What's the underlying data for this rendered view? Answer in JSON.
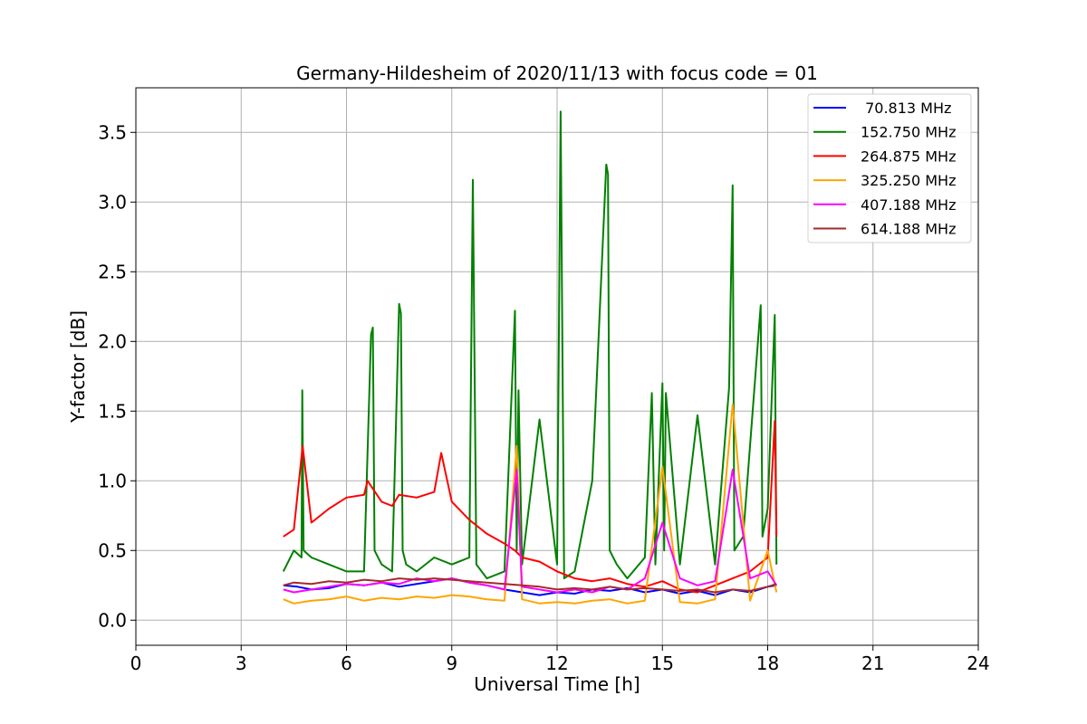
{
  "chart_data": {
    "type": "line",
    "title": "Germany-Hildesheim of 2020/11/13 with focus code = 01",
    "xlabel": "Universal Time [h]",
    "ylabel": "Y-factor [dB]",
    "xlim": [
      0,
      24
    ],
    "ylim": [
      -0.18,
      3.82
    ],
    "xticks": [
      0,
      3,
      6,
      9,
      12,
      15,
      18,
      21,
      24
    ],
    "yticks": [
      0.0,
      0.5,
      1.0,
      1.5,
      2.0,
      2.5,
      3.0,
      3.5
    ],
    "xtick_labels": [
      "0",
      "3",
      "6",
      "9",
      "12",
      "15",
      "18",
      "21",
      "24"
    ],
    "ytick_labels": [
      "0.0",
      "0.5",
      "1.0",
      "1.5",
      "2.0",
      "2.5",
      "3.0",
      "3.5"
    ],
    "grid": true,
    "legend_position": "top-right",
    "series": [
      {
        "name": " 70.813 MHz",
        "color": "#0000ff",
        "x": [
          4.2,
          4.6,
          5.0,
          5.5,
          6.0,
          6.5,
          7.0,
          7.5,
          8.0,
          8.5,
          9.0,
          9.5,
          10.0,
          10.5,
          11.0,
          11.5,
          12.0,
          12.5,
          13.0,
          13.5,
          14.0,
          14.5,
          15.0,
          15.5,
          16.0,
          16.5,
          17.0,
          17.5,
          18.0,
          18.25
        ],
        "values": [
          0.25,
          0.24,
          0.22,
          0.23,
          0.26,
          0.25,
          0.27,
          0.24,
          0.26,
          0.28,
          0.3,
          0.27,
          0.25,
          0.22,
          0.2,
          0.18,
          0.2,
          0.19,
          0.22,
          0.21,
          0.23,
          0.2,
          0.22,
          0.19,
          0.21,
          0.18,
          0.22,
          0.2,
          0.24,
          0.25
        ]
      },
      {
        "name": "152.750 MHz",
        "color": "#008000",
        "x": [
          4.2,
          4.5,
          4.72,
          4.74,
          4.78,
          5.0,
          5.5,
          6.0,
          6.5,
          6.7,
          6.75,
          6.8,
          7.0,
          7.3,
          7.5,
          7.55,
          7.6,
          7.7,
          8.0,
          8.5,
          9.0,
          9.5,
          9.6,
          9.7,
          10.0,
          10.5,
          10.8,
          10.85,
          10.9,
          11.0,
          11.5,
          12.0,
          12.1,
          12.2,
          12.5,
          13.0,
          13.4,
          13.45,
          13.5,
          13.7,
          14.0,
          14.5,
          14.7,
          14.8,
          15.0,
          15.05,
          15.1,
          15.5,
          16.0,
          16.5,
          16.9,
          17.0,
          17.05,
          17.3,
          17.8,
          17.85,
          18.0,
          18.2,
          18.25
        ],
        "values": [
          0.35,
          0.5,
          0.45,
          1.65,
          0.5,
          0.45,
          0.4,
          0.35,
          0.35,
          2.05,
          2.1,
          0.5,
          0.4,
          0.35,
          2.27,
          2.2,
          0.5,
          0.4,
          0.35,
          0.45,
          0.4,
          0.45,
          3.16,
          0.4,
          0.3,
          0.35,
          2.22,
          0.5,
          1.65,
          0.4,
          1.44,
          0.4,
          3.65,
          0.3,
          0.35,
          1.0,
          3.27,
          3.2,
          0.5,
          0.4,
          0.3,
          0.45,
          1.63,
          0.4,
          1.7,
          0.5,
          1.63,
          0.4,
          1.47,
          0.4,
          1.67,
          3.12,
          0.5,
          0.6,
          2.26,
          0.6,
          0.8,
          2.19,
          0.4
        ]
      },
      {
        "name": "264.875 MHz",
        "color": "#ff0000",
        "x": [
          4.2,
          4.5,
          4.75,
          5.0,
          5.5,
          6.0,
          6.5,
          6.6,
          7.0,
          7.3,
          7.5,
          8.0,
          8.5,
          8.7,
          9.0,
          9.5,
          10.0,
          10.5,
          10.8,
          11.0,
          11.5,
          12.0,
          12.5,
          13.0,
          13.5,
          14.0,
          14.5,
          15.0,
          15.5,
          16.0,
          16.5,
          17.0,
          17.5,
          18.0,
          18.2,
          18.25
        ],
        "values": [
          0.6,
          0.65,
          1.25,
          0.7,
          0.8,
          0.88,
          0.9,
          1.0,
          0.85,
          0.82,
          0.9,
          0.88,
          0.92,
          1.2,
          0.85,
          0.72,
          0.62,
          0.55,
          0.5,
          0.45,
          0.42,
          0.35,
          0.3,
          0.28,
          0.3,
          0.26,
          0.24,
          0.28,
          0.22,
          0.2,
          0.25,
          0.3,
          0.35,
          0.45,
          1.43,
          0.6
        ]
      },
      {
        "name": "325.250 MHz",
        "color": "#ffa500",
        "x": [
          4.2,
          4.5,
          5.0,
          5.5,
          6.0,
          6.5,
          7.0,
          7.5,
          8.0,
          8.5,
          9.0,
          9.5,
          10.0,
          10.5,
          10.85,
          11.0,
          11.5,
          12.0,
          12.5,
          13.0,
          13.5,
          14.0,
          14.5,
          15.0,
          15.5,
          16.0,
          16.5,
          17.0,
          17.5,
          18.0,
          18.25
        ],
        "values": [
          0.15,
          0.12,
          0.14,
          0.15,
          0.17,
          0.14,
          0.16,
          0.15,
          0.17,
          0.16,
          0.18,
          0.17,
          0.15,
          0.14,
          1.25,
          0.15,
          0.12,
          0.13,
          0.12,
          0.14,
          0.15,
          0.12,
          0.14,
          1.1,
          0.13,
          0.12,
          0.15,
          1.55,
          0.14,
          0.5,
          0.2
        ]
      },
      {
        "name": "407.188 MHz",
        "color": "#ff00ff",
        "x": [
          4.2,
          4.5,
          5.0,
          5.5,
          6.0,
          6.5,
          7.0,
          7.5,
          8.0,
          8.5,
          9.0,
          9.5,
          10.0,
          10.5,
          10.85,
          11.0,
          11.5,
          12.0,
          12.5,
          13.0,
          13.5,
          14.0,
          14.5,
          15.0,
          15.5,
          16.0,
          16.5,
          17.0,
          17.5,
          18.0,
          18.25
        ],
        "values": [
          0.22,
          0.2,
          0.22,
          0.24,
          0.26,
          0.25,
          0.27,
          0.26,
          0.3,
          0.28,
          0.3,
          0.27,
          0.25,
          0.22,
          1.08,
          0.24,
          0.22,
          0.2,
          0.22,
          0.2,
          0.24,
          0.22,
          0.3,
          0.7,
          0.3,
          0.25,
          0.28,
          1.08,
          0.3,
          0.35,
          0.25
        ]
      },
      {
        "name": "614.188 MHz",
        "color": "#a52a2a",
        "x": [
          4.2,
          4.5,
          5.0,
          5.5,
          6.0,
          6.5,
          7.0,
          7.5,
          8.0,
          8.5,
          9.0,
          9.5,
          10.0,
          10.5,
          11.0,
          11.5,
          12.0,
          12.5,
          13.0,
          13.5,
          14.0,
          14.5,
          15.0,
          15.5,
          16.0,
          16.5,
          17.0,
          17.5,
          18.0,
          18.25
        ],
        "values": [
          0.25,
          0.27,
          0.26,
          0.28,
          0.27,
          0.29,
          0.28,
          0.3,
          0.29,
          0.3,
          0.29,
          0.28,
          0.27,
          0.26,
          0.25,
          0.24,
          0.22,
          0.23,
          0.22,
          0.24,
          0.22,
          0.23,
          0.22,
          0.21,
          0.22,
          0.2,
          0.22,
          0.21,
          0.24,
          0.26
        ]
      }
    ]
  }
}
